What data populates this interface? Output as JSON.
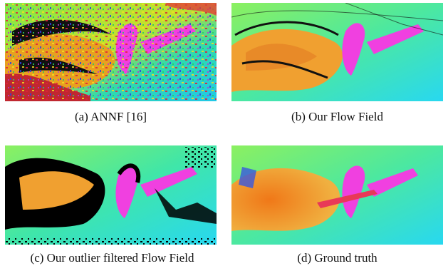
{
  "figure": {
    "panels": [
      {
        "caption": "(a)  ANNF [16]",
        "content": "noisy-flow-visualization"
      },
      {
        "caption": "(b)  Our Flow Field",
        "content": "smooth-flow-visualization"
      },
      {
        "caption": "(c)  Our outlier filtered Flow Field",
        "content": "filtered-flow-visualization"
      },
      {
        "caption": "(d)  Ground truth",
        "content": "ground-truth-flow-visualization"
      }
    ]
  }
}
